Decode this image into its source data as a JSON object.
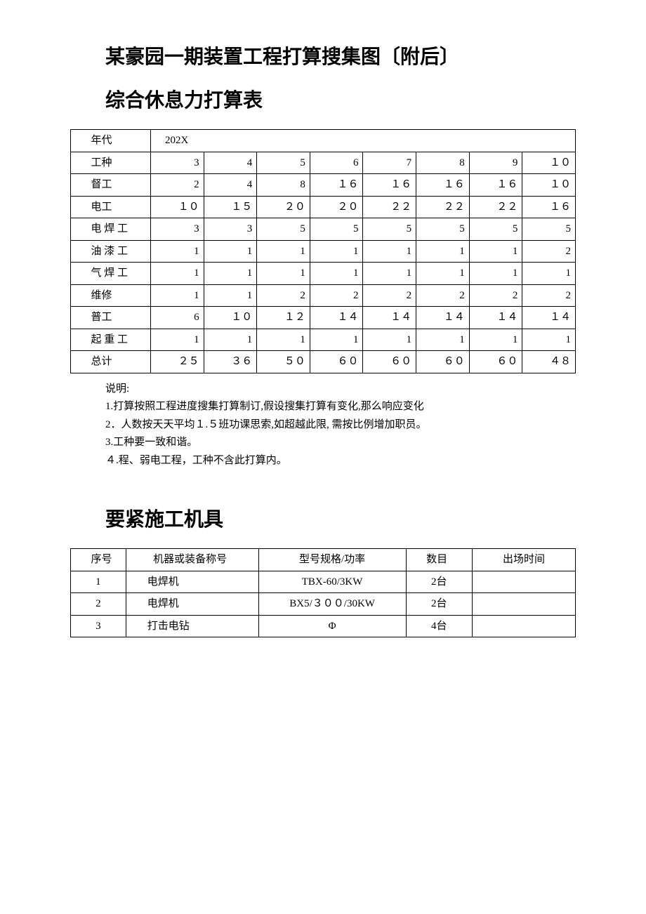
{
  "doc": {
    "heading1": "某豪园一期装置工程打算搜集图〔附后〕",
    "heading2": "综合休息力打算表",
    "heading3": "要紧施工机具"
  },
  "table1": {
    "year_label": "年代",
    "year_value": "202X",
    "type_label": "工种",
    "months": [
      "3",
      "4",
      "5",
      "6",
      "7",
      "8",
      "9",
      "１０"
    ],
    "rows": [
      {
        "label": "督工",
        "vals": [
          "2",
          "4",
          "8",
          "１６",
          "１６",
          "１６",
          "１６",
          "１０"
        ]
      },
      {
        "label": "电工",
        "vals": [
          "１０",
          "１５",
          "２０",
          "２０",
          "２２",
          "２２",
          "２２",
          "１６"
        ]
      },
      {
        "label": "电焊工",
        "vals": [
          "3",
          "3",
          "5",
          "5",
          "5",
          "5",
          "5",
          "5"
        ]
      },
      {
        "label": "油漆工",
        "vals": [
          "1",
          "1",
          "1",
          "1",
          "1",
          "1",
          "1",
          "2"
        ]
      },
      {
        "label": "气焊工",
        "vals": [
          "1",
          "1",
          "1",
          "1",
          "1",
          "1",
          "1",
          "1"
        ]
      },
      {
        "label": "维修",
        "vals": [
          "1",
          "1",
          "2",
          "2",
          "2",
          "2",
          "2",
          "2"
        ]
      },
      {
        "label": "普工",
        "vals": [
          "6",
          "１０",
          "１２",
          "１４",
          "１４",
          "１４",
          "１４",
          "１４"
        ]
      },
      {
        "label": "起重工",
        "vals": [
          "1",
          "1",
          "1",
          "1",
          "1",
          "1",
          "1",
          "1"
        ]
      },
      {
        "label": "总计",
        "vals": [
          "２５",
          "３６",
          "５０",
          "６０",
          "６０",
          "６０",
          "６０",
          "４８"
        ]
      }
    ]
  },
  "notes": {
    "title": "说明:",
    "lines": [
      "1.打算按照工程进度搜集打算制订,假设搜集打算有变化,那么响应变化",
      "2．人数按天天平均１.５班功课思索,如超越此限, 需按比例增加职员。",
      "3.工种要一致和谐。",
      "４.程、弱电工程，工种不含此打算内。"
    ]
  },
  "table2": {
    "headers": [
      "序号",
      "机器或装备称号",
      "型号规格/功率",
      "数目",
      "出场时间"
    ],
    "rows": [
      {
        "seq": "1",
        "name": "电焊机",
        "spec": "TBX-60/3KW",
        "qty": "2台",
        "time": ""
      },
      {
        "seq": "2",
        "name": "电焊机",
        "spec": "BX5/３００/30KW",
        "qty": "2台",
        "time": ""
      },
      {
        "seq": "3",
        "name": "打击电钻",
        "spec": "Φ",
        "qty": "4台",
        "time": ""
      }
    ]
  },
  "styles": {
    "background_color": "#ffffff",
    "text_color": "#000000",
    "border_color": "#000000",
    "heading_fontsize": 28,
    "body_fontsize": 15
  }
}
